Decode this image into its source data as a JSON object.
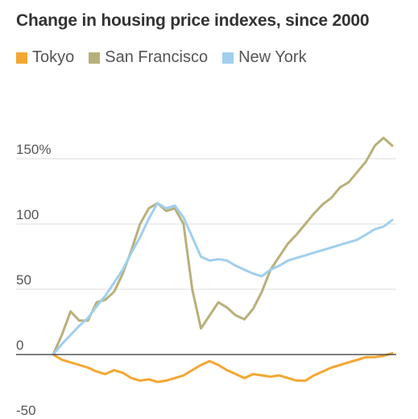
{
  "chart_data": {
    "type": "line",
    "title": "Change in housing price indexes, since 2000",
    "xlabel": "",
    "ylabel": "",
    "ylim": [
      -50,
      170
    ],
    "yticks": [
      {
        "value": 150,
        "label": "150%"
      },
      {
        "value": 100,
        "label": "100"
      },
      {
        "value": 50,
        "label": "50"
      },
      {
        "value": 0,
        "label": "0"
      },
      {
        "value": -50,
        "label": "-50"
      }
    ],
    "grid": true,
    "legend_position": "top-left",
    "xlim": [
      2000,
      2019.5
    ],
    "series": [
      {
        "name": "Tokyo",
        "color": "#f4a732",
        "x": [
          2000,
          2000.5,
          2001,
          2001.5,
          2002,
          2002.5,
          2003,
          2003.5,
          2004,
          2004.5,
          2005,
          2005.5,
          2006,
          2006.5,
          2007,
          2007.5,
          2008,
          2008.5,
          2009,
          2009.5,
          2010,
          2010.5,
          2011,
          2011.5,
          2012,
          2012.5,
          2013,
          2013.5,
          2014,
          2014.5,
          2015,
          2015.5,
          2016,
          2016.5,
          2017,
          2017.5,
          2018,
          2018.5,
          2019,
          2019.5
        ],
        "y": [
          0,
          -4,
          -6,
          -8,
          -10,
          -13,
          -15,
          -12,
          -14,
          -18,
          -20,
          -19,
          -21,
          -20,
          -18,
          -16,
          -12,
          -8,
          -5,
          -8,
          -12,
          -15,
          -18,
          -15,
          -16,
          -17,
          -16,
          -18,
          -20,
          -20,
          -16,
          -13,
          -10,
          -8,
          -6,
          -4,
          -2,
          -2,
          -1,
          1
        ]
      },
      {
        "name": "San Francisco",
        "color": "#b8b07a",
        "x": [
          2000,
          2000.5,
          2001,
          2001.5,
          2002,
          2002.5,
          2003,
          2003.5,
          2004,
          2004.5,
          2005,
          2005.5,
          2006,
          2006.5,
          2007,
          2007.5,
          2008,
          2008.5,
          2009,
          2009.5,
          2010,
          2010.5,
          2011,
          2011.5,
          2012,
          2012.5,
          2013,
          2013.5,
          2014,
          2014.5,
          2015,
          2015.5,
          2016,
          2016.5,
          2017,
          2017.5,
          2018,
          2018.5,
          2019,
          2019.5
        ],
        "y": [
          0,
          15,
          33,
          26,
          26,
          40,
          42,
          48,
          62,
          80,
          100,
          112,
          116,
          110,
          112,
          100,
          50,
          20,
          30,
          40,
          36,
          30,
          27,
          35,
          48,
          65,
          75,
          85,
          92,
          100,
          108,
          115,
          120,
          128,
          132,
          140,
          148,
          160,
          166,
          160
        ]
      },
      {
        "name": "New York",
        "color": "#a0cfee",
        "x": [
          2000,
          2000.5,
          2001,
          2001.5,
          2002,
          2002.5,
          2003,
          2003.5,
          2004,
          2004.5,
          2005,
          2005.5,
          2006,
          2006.5,
          2007,
          2007.5,
          2008,
          2008.5,
          2009,
          2009.5,
          2010,
          2010.5,
          2011,
          2011.5,
          2012,
          2012.5,
          2013,
          2013.5,
          2014,
          2014.5,
          2015,
          2015.5,
          2016,
          2016.5,
          2017,
          2017.5,
          2018,
          2018.5,
          2019,
          2019.5
        ],
        "y": [
          0,
          8,
          15,
          22,
          28,
          37,
          45,
          55,
          65,
          78,
          90,
          104,
          116,
          112,
          114,
          105,
          90,
          75,
          72,
          73,
          72,
          68,
          65,
          62,
          60,
          65,
          68,
          72,
          74,
          76,
          78,
          80,
          82,
          84,
          86,
          88,
          92,
          96,
          98,
          103
        ]
      }
    ]
  }
}
